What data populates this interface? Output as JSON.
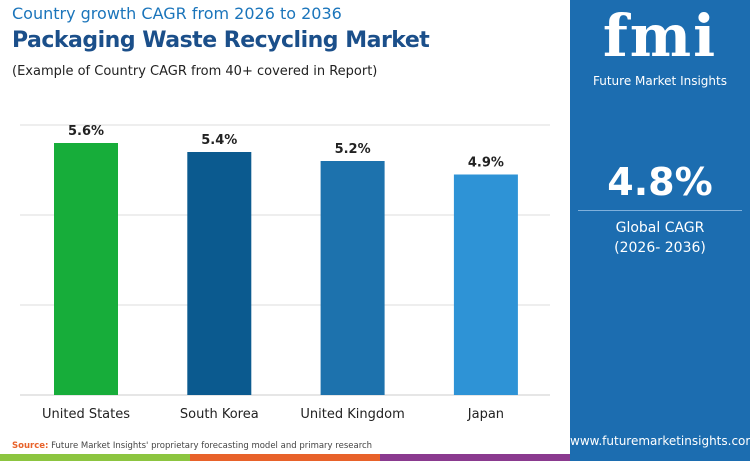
{
  "header": {
    "supertitle": "Country growth CAGR from 2026 to 2036",
    "title": "Packaging Waste Recycling Market",
    "subtitle": "(Example of Country CAGR from 40+ covered in Report)"
  },
  "chart_data": {
    "type": "bar",
    "categories": [
      "United States",
      "South Korea",
      "United Kingdom",
      "Japan"
    ],
    "values": [
      5.6,
      5.4,
      5.2,
      4.9
    ],
    "data_labels": [
      "5.6%",
      "5.4%",
      "5.2%",
      "4.9%"
    ],
    "colors": [
      "#17ad3a",
      "#0b5a8f",
      "#1d72ad",
      "#2e93d6"
    ],
    "ylim": [
      0,
      6
    ],
    "grid": true,
    "gridlines": [
      2,
      4,
      6
    ]
  },
  "source": {
    "label": "Source:",
    "text": " Future Market Insights' proprietary forecasting model and primary research"
  },
  "strip_colors": [
    "#8cc540",
    "#e8622a",
    "#8a3a8f"
  ],
  "panel": {
    "logo_text": "fmi",
    "logo_sub": "Future Market Insights",
    "value": "4.8%",
    "label1": "Global CAGR",
    "label2": "(2026- 2036)",
    "url": "www.futuremarketinsights.com",
    "bg": "#1c6db0"
  }
}
